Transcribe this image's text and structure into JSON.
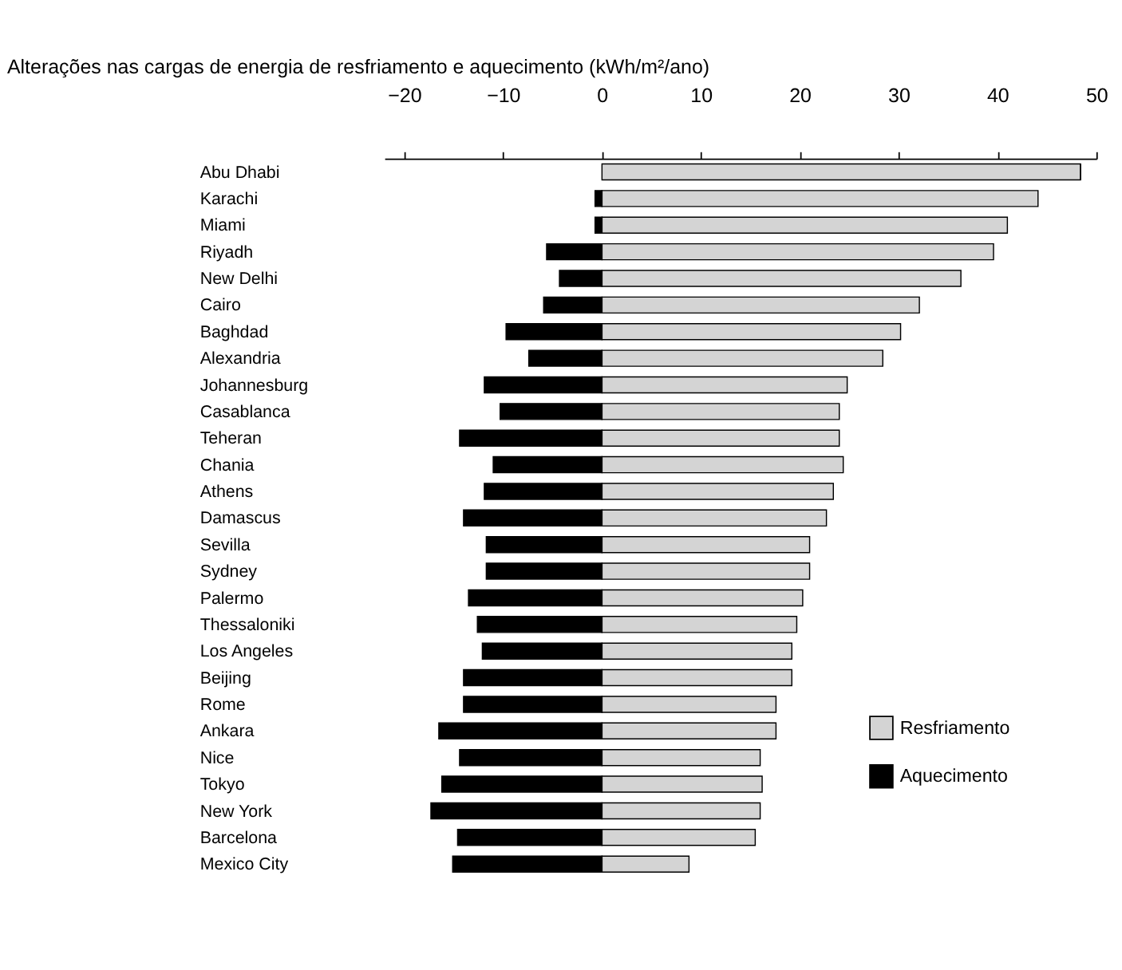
{
  "chart_data": {
    "type": "bar",
    "orientation": "horizontal",
    "stacked": true,
    "title": "Alterações nas cargas de energia de resfriamento e aquecimento (kWh/m²/ano)",
    "categories": [
      "Abu Dhabi",
      "Karachi",
      "Miami",
      "Riyadh",
      "New Delhi",
      "Cairo",
      "Baghdad",
      "Alexandria",
      "Johannesburg",
      "Casablanca",
      "Teheran",
      "Chania",
      "Athens",
      "Damascus",
      "Sevilla",
      "Sydney",
      "Palermo",
      "Thessaloniki",
      "Los Angeles",
      "Beijing",
      "Rome",
      "Ankara",
      "Nice",
      "Tokyo",
      "New York",
      "Barcelona",
      "Mexico City"
    ],
    "series": [
      {
        "name": "Resfriamento",
        "color": "#d4d4d4",
        "values": [
          48.4,
          44.1,
          41.0,
          39.6,
          36.3,
          32.1,
          30.2,
          28.4,
          24.8,
          24.0,
          24.0,
          24.4,
          23.4,
          22.7,
          21.0,
          21.0,
          20.3,
          19.7,
          19.2,
          19.2,
          17.6,
          17.6,
          16.0,
          16.2,
          16.0,
          15.5,
          8.8
        ]
      },
      {
        "name": "Aquecimento",
        "color": "#000000",
        "values": [
          0,
          -0.7,
          -0.7,
          -5.6,
          -4.3,
          -5.9,
          -9.7,
          -7.4,
          -11.9,
          -10.3,
          -14.4,
          -11.0,
          -11.9,
          -14.0,
          -11.7,
          -11.7,
          -13.5,
          -12.6,
          -12.1,
          -14.0,
          -14.0,
          -16.5,
          -14.4,
          -16.2,
          -17.3,
          -14.6,
          -15.1
        ]
      }
    ],
    "xlim": [
      -22,
      50
    ],
    "xticks": [
      -20,
      -10,
      0,
      10,
      20,
      30,
      40,
      50
    ],
    "grid": false,
    "legend": "bottom right"
  }
}
